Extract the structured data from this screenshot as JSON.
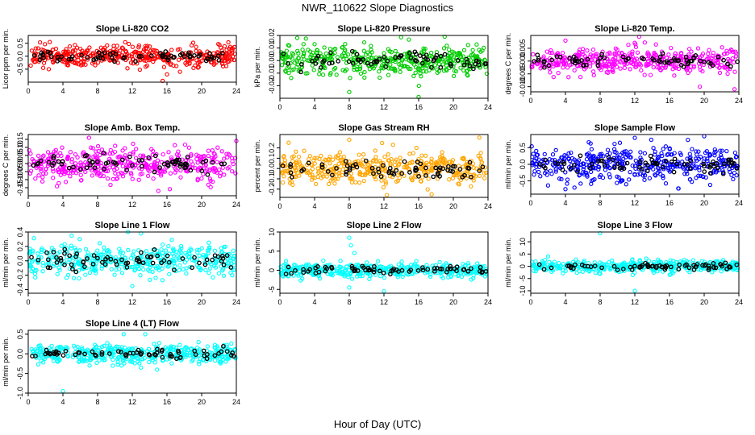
{
  "figure": {
    "title": "NWR_110622  Slope Diagnostics",
    "xlabel": "Hour of Day (UTC)"
  },
  "chart_data": [
    {
      "type": "scatter",
      "title": "Slope Li-820 CO2",
      "ylabel": "Licor ppm per min.",
      "color": "#ff0000",
      "xlim": [
        0,
        24
      ],
      "ylim": [
        -1.0,
        0.8
      ],
      "yticks": [
        -0.5,
        0.0,
        0.5
      ],
      "ytick_labels": [
        "-0.5",
        "0.0",
        "0.5"
      ],
      "xticks": [
        0,
        4,
        8,
        12,
        16,
        20,
        24
      ],
      "spread": 0.2,
      "outliers": [
        [
          15.5,
          -0.95
        ],
        [
          16.0,
          -0.7
        ],
        [
          17.5,
          -0.6
        ]
      ]
    },
    {
      "type": "scatter",
      "title": "Slope Li-820 Pressure",
      "ylabel": "kPa per min.",
      "color": "#00cc00",
      "xlim": [
        0,
        24
      ],
      "ylim": [
        -0.03,
        0.02
      ],
      "yticks": [
        -0.02,
        -0.01,
        0.0,
        0.01,
        0.02
      ],
      "ytick_labels": [
        "-0.02",
        "-0.01",
        "0.00",
        "0.01",
        "0.02"
      ],
      "xticks": [
        0,
        4,
        8,
        12,
        16,
        20,
        24
      ],
      "spread": 0.006,
      "outliers": [
        [
          2.0,
          0.018
        ],
        [
          8.0,
          -0.025
        ],
        [
          16.0,
          -0.029
        ],
        [
          19.0,
          0.019
        ]
      ]
    },
    {
      "type": "scatter",
      "title": "Slope Li-820 Temp.",
      "ylabel": "degrees C per min.",
      "color": "#ff00ff",
      "xlim": [
        0,
        24
      ],
      "ylim": [
        -0.012,
        0.01
      ],
      "yticks": [
        -0.01,
        -0.005,
        0.0,
        0.005
      ],
      "ytick_labels": [
        "-0.010",
        "-0.005",
        "0.000",
        "0.005"
      ],
      "xticks": [
        0,
        4,
        8,
        12,
        16,
        20,
        24
      ],
      "spread": 0.0025,
      "outliers": [
        [
          4.0,
          0.008
        ],
        [
          12.5,
          0.0095
        ],
        [
          19.5,
          -0.01
        ],
        [
          23.5,
          -0.011
        ]
      ]
    },
    {
      "type": "scatter",
      "title": "Slope Amb. Box Temp.",
      "ylabel": "degrees C per min.",
      "color": "#ff00ff",
      "xlim": [
        0,
        24
      ],
      "ylim": [
        -0.2,
        0.18
      ],
      "yticks": [
        -0.15,
        -0.1,
        -0.05,
        0.0,
        0.05,
        0.1,
        0.15
      ],
      "ytick_labels": [
        "-0.15",
        "-0.10",
        "-0.05",
        "0.00",
        "0.05",
        "0.10",
        "0.15"
      ],
      "xticks": [
        0,
        4,
        8,
        12,
        16,
        20,
        24
      ],
      "spread": 0.05,
      "outliers": [
        [
          7.0,
          0.16
        ],
        [
          15.0,
          -0.17
        ],
        [
          24.0,
          0.14
        ]
      ]
    },
    {
      "type": "scatter",
      "title": "Slope Gas Stream RH",
      "ylabel": "percent per min.",
      "color": "#ffa500",
      "xlim": [
        0,
        24
      ],
      "ylim": [
        -0.28,
        0.33
      ],
      "yticks": [
        -0.2,
        -0.1,
        0.0,
        0.1,
        0.2
      ],
      "ytick_labels": [
        "-0.2",
        "-0.1",
        "0.0",
        "0.1",
        "0.2"
      ],
      "xticks": [
        0,
        4,
        8,
        12,
        16,
        20,
        24
      ],
      "spread": 0.08,
      "outliers": [
        [
          1.0,
          0.25
        ],
        [
          8.0,
          0.28
        ],
        [
          17.5,
          -0.25
        ],
        [
          23.0,
          0.3
        ]
      ]
    },
    {
      "type": "scatter",
      "title": "Slope Sample Flow",
      "ylabel": "ml/min per min.",
      "color": "#0000ff",
      "xlim": [
        0,
        24
      ],
      "ylim": [
        -0.9,
        0.9
      ],
      "yticks": [
        -0.5,
        0.0,
        0.5
      ],
      "ytick_labels": [
        "-0.5",
        "0.0",
        "0.5"
      ],
      "xticks": [
        0,
        4,
        8,
        12,
        16,
        20,
        24
      ],
      "spread": 0.25,
      "outliers": [
        [
          4.0,
          -0.75
        ],
        [
          12.0,
          0.8
        ],
        [
          20.0,
          0.85
        ],
        [
          11.0,
          -0.6
        ]
      ]
    },
    {
      "type": "scatter",
      "title": "Slope Line 1 Flow",
      "ylabel": "ml/min per min.",
      "color": "#00ffff",
      "xlim": [
        0,
        24
      ],
      "ylim": [
        -0.45,
        0.4
      ],
      "yticks": [
        -0.4,
        -0.2,
        0.0,
        0.2,
        0.4
      ],
      "ytick_labels": [
        "-0.4",
        "-0.2",
        "0.0",
        "0.2",
        "0.4"
      ],
      "xticks": [
        0,
        4,
        8,
        12,
        16,
        20,
        24
      ],
      "spread": 0.11,
      "outliers": [
        [
          5.0,
          0.35
        ],
        [
          11.5,
          0.4
        ],
        [
          13.0,
          0.38
        ],
        [
          12.0,
          -0.35
        ]
      ]
    },
    {
      "type": "scatter",
      "title": "Slope Line 2 Flow",
      "ylabel": "ml/min per min.",
      "color": "#00ffff",
      "xlim": [
        0,
        24
      ],
      "ylim": [
        -6,
        10
      ],
      "yticks": [
        -5,
        0,
        5,
        10
      ],
      "ytick_labels": [
        "-5",
        "0",
        "5",
        "10"
      ],
      "xticks": [
        0,
        4,
        8,
        12,
        16,
        20,
        24
      ],
      "spread": 0.9,
      "outliers": [
        [
          8.0,
          8.5
        ],
        [
          8.2,
          6.5
        ],
        [
          8.6,
          4.5
        ],
        [
          8.0,
          -4.5
        ],
        [
          12.0,
          -5.5
        ],
        [
          5.0,
          2.5
        ]
      ]
    },
    {
      "type": "scatter",
      "title": "Slope Line 3 Flow",
      "ylabel": "ml/min per min.",
      "color": "#00ffff",
      "xlim": [
        0,
        24
      ],
      "ylim": [
        -11,
        14
      ],
      "yticks": [
        -10,
        -5,
        0,
        5,
        10
      ],
      "ytick_labels": [
        "-10",
        "-5",
        "0",
        "5",
        "10"
      ],
      "xticks": [
        0,
        4,
        8,
        12,
        16,
        20,
        24
      ],
      "spread": 1.2,
      "outliers": [
        [
          8.0,
          13.5
        ],
        [
          12.0,
          -10.0
        ],
        [
          2.0,
          4.0
        ],
        [
          8.0,
          -3.0
        ]
      ]
    },
    {
      "type": "scatter",
      "title": "Slope Line 4 (LT) Flow",
      "ylabel": "ml/min per min.",
      "color": "#00ffff",
      "xlim": [
        0,
        24
      ],
      "ylim": [
        -1.0,
        0.6
      ],
      "yticks": [
        -1.0,
        -0.5,
        0.0,
        0.5
      ],
      "ytick_labels": [
        "-1.0",
        "-0.5",
        "0.0",
        "0.5"
      ],
      "xticks": [
        0,
        4,
        8,
        12,
        16,
        20,
        24
      ],
      "spread": 0.12,
      "outliers": [
        [
          4.0,
          -0.95
        ],
        [
          11.0,
          0.5
        ],
        [
          13.0,
          -0.35
        ],
        [
          13.5,
          0.5
        ]
      ]
    }
  ]
}
